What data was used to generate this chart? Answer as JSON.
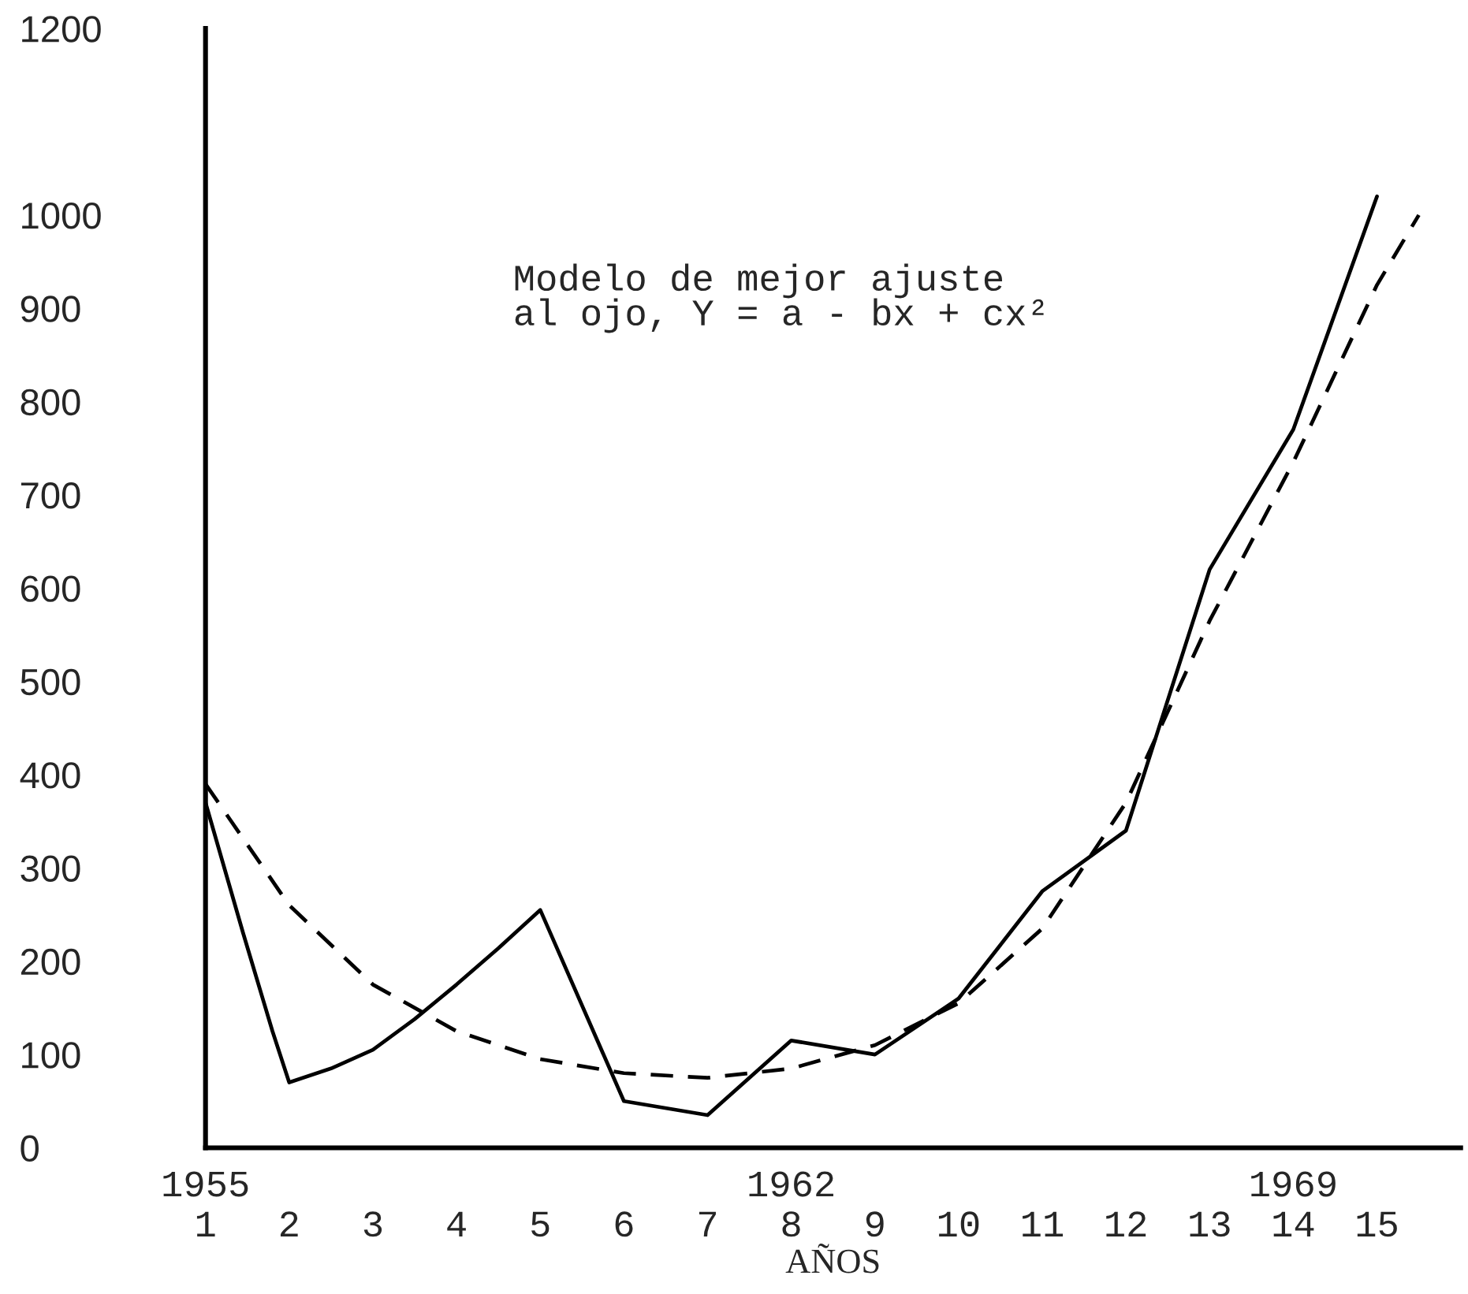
{
  "chart_data": {
    "type": "line",
    "xlabel": "AÑOS",
    "annotations": [
      "Modelo de mejor ajuste\nal ojo, Y = a - bx + cx²"
    ],
    "series": [
      {
        "color": "#000000",
        "line_style": "solid",
        "x": [
          1,
          1.45,
          1.8,
          2,
          2.5,
          3,
          3.5,
          4,
          4.5,
          5,
          6,
          7,
          8,
          9,
          10,
          11,
          12,
          13,
          14,
          15
        ],
        "values": [
          370,
          230,
          125,
          70,
          85,
          105,
          138,
          175,
          214,
          255,
          50,
          35,
          115,
          100,
          160,
          275,
          340,
          620,
          770,
          1020
        ]
      },
      {
        "color": "#000000",
        "line_style": "dashed",
        "x": [
          1,
          2,
          3,
          4,
          5,
          6,
          7,
          8,
          9,
          10,
          11,
          12,
          13,
          14,
          15,
          15.5
        ],
        "values": [
          390,
          260,
          175,
          125,
          95,
          80,
          75,
          85,
          110,
          155,
          235,
          370,
          565,
          735,
          925,
          1000
        ]
      }
    ],
    "xlim": [
      1,
      16
    ],
    "xticks": [
      {
        "value": 1,
        "label": "1955\n1"
      },
      2,
      3,
      4,
      5,
      6,
      7,
      {
        "value": 8,
        "label": "1962\n8"
      },
      9,
      10,
      11,
      12,
      13,
      {
        "value": 14,
        "label": "1969\n14"
      },
      15
    ],
    "ylim": [
      0,
      1200
    ],
    "yticks": [
      0,
      100,
      200,
      300,
      400,
      500,
      600,
      700,
      800,
      900,
      1000,
      1200
    ],
    "grid": false
  }
}
